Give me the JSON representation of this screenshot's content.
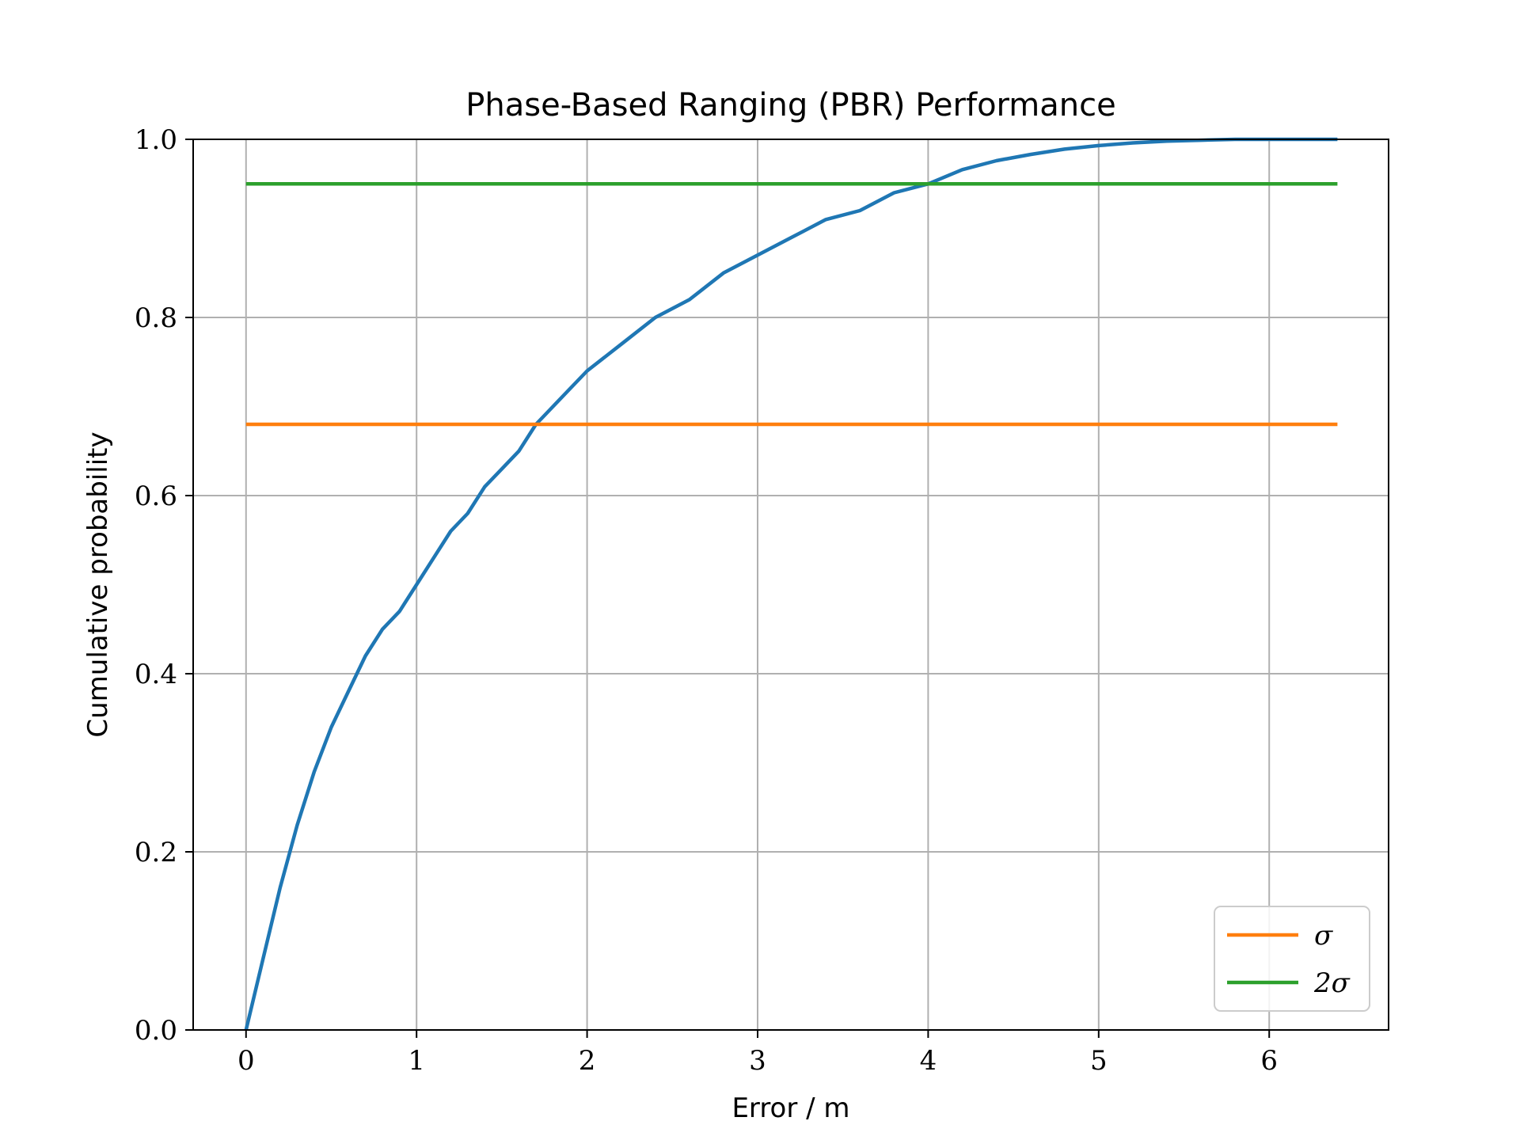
{
  "chart_data": {
    "type": "line",
    "title": "Phase-Based Ranging (PBR) Performance",
    "xlabel": "Error / m",
    "ylabel": "Cumulative probability",
    "xlim": [
      -0.31,
      6.7
    ],
    "ylim": [
      0.0,
      1.0
    ],
    "xticks": [
      0,
      1,
      2,
      3,
      4,
      5,
      6
    ],
    "xtick_labels": [
      "0",
      "1",
      "2",
      "3",
      "4",
      "5",
      "6"
    ],
    "yticks": [
      0.0,
      0.2,
      0.4,
      0.6,
      0.8,
      1.0
    ],
    "ytick_labels": [
      "0.0",
      "0.2",
      "0.4",
      "0.6",
      "0.8",
      "1.0"
    ],
    "grid": true,
    "legend_position": "lower-right",
    "series": [
      {
        "color": "#1f77b4",
        "x": [
          0.0,
          0.1,
          0.2,
          0.3,
          0.4,
          0.5,
          0.6,
          0.7,
          0.8,
          0.9,
          1.0,
          1.1,
          1.2,
          1.3,
          1.4,
          1.5,
          1.6,
          1.7,
          1.8,
          1.9,
          2.0,
          2.2,
          2.4,
          2.6,
          2.8,
          3.0,
          3.2,
          3.4,
          3.6,
          3.8,
          4.0,
          4.2,
          4.4,
          4.6,
          4.8,
          5.0,
          5.2,
          5.4,
          5.6,
          5.8,
          6.0,
          6.2,
          6.4
        ],
        "y": [
          0.0,
          0.08,
          0.16,
          0.23,
          0.29,
          0.34,
          0.38,
          0.42,
          0.45,
          0.47,
          0.5,
          0.53,
          0.56,
          0.58,
          0.61,
          0.63,
          0.65,
          0.68,
          0.7,
          0.72,
          0.74,
          0.77,
          0.8,
          0.82,
          0.85,
          0.87,
          0.89,
          0.91,
          0.92,
          0.94,
          0.95,
          0.966,
          0.976,
          0.983,
          0.989,
          0.993,
          0.996,
          0.998,
          0.999,
          1.0,
          1.0,
          1.0,
          1.0
        ]
      },
      {
        "name": "σ",
        "color": "#ff7f0e",
        "x": [
          0.0,
          6.4
        ],
        "y": [
          0.68,
          0.68
        ]
      },
      {
        "name": "2σ",
        "color": "#2ca02c",
        "x": [
          0.0,
          6.4
        ],
        "y": [
          0.95,
          0.95
        ]
      }
    ]
  }
}
